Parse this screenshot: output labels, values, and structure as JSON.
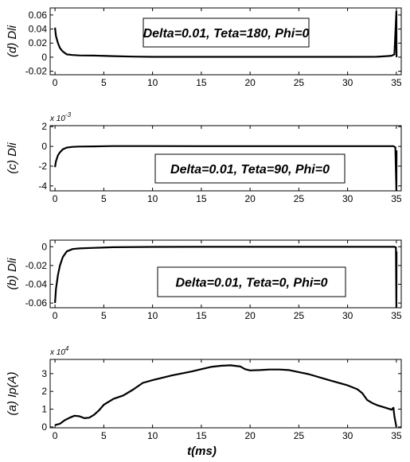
{
  "chart_data": [
    {
      "type": "line",
      "panel": "d",
      "ylabel": "(d) Dli",
      "xlabel": "",
      "annotation": "Delta=0.01, Teta=180, Phi=0",
      "xlim": [
        -0.5,
        35.5
      ],
      "ylim": [
        -0.025,
        0.07
      ],
      "xticks": [
        0,
        5,
        10,
        15,
        20,
        25,
        30,
        35
      ],
      "yticks": [
        -0.02,
        0,
        0.02,
        0.04,
        0.06
      ],
      "ytick_labels": [
        "-0.02",
        "0",
        "0.02",
        "0.04",
        "0.06"
      ],
      "exponent_label": "",
      "grid": false,
      "series": [
        {
          "x": [
            0,
            0.1,
            0.3,
            0.5,
            0.8,
            1.2,
            1.8,
            2.5,
            4,
            6,
            8,
            10,
            15,
            20,
            25,
            30,
            33,
            34,
            34.5,
            34.8,
            35,
            35.01,
            35.02
          ],
          "y": [
            0.042,
            0.03,
            0.02,
            0.013,
            0.008,
            0.004,
            0.003,
            0.0025,
            0.0023,
            0.0015,
            0.0008,
            0.0005,
            0.0004,
            0.0004,
            0.0004,
            0.0005,
            0.0006,
            0.0015,
            0.002,
            0.004,
            0.065,
            0.02,
            0.0
          ]
        }
      ]
    },
    {
      "type": "line",
      "panel": "c",
      "ylabel": "(c) Dli",
      "xlabel": "",
      "annotation": "Delta=0.01, Teta=90, Phi=0",
      "xlim": [
        -0.5,
        35.5
      ],
      "ylim": [
        -0.0045,
        0.0021
      ],
      "xticks": [
        0,
        5,
        10,
        15,
        20,
        25,
        30,
        35
      ],
      "yticks": [
        -0.004,
        -0.002,
        0,
        0.002
      ],
      "ytick_labels": [
        "-4",
        "-2",
        "0",
        "2"
      ],
      "exponent_label": "x 10",
      "exponent_power": "-3",
      "grid": false,
      "series": [
        {
          "x": [
            0,
            0.1,
            0.3,
            0.5,
            0.8,
            1.2,
            1.8,
            2.5,
            4,
            6,
            10,
            15,
            20,
            25,
            30,
            34.7,
            34.9,
            35,
            35.01,
            35.02
          ],
          "y": [
            -0.0021,
            -0.0015,
            -0.0009,
            -0.0006,
            -0.0003,
            -0.00012,
            -5e-05,
            -2e-05,
            0,
            3e-05,
            3e-05,
            2e-05,
            2e-05,
            2e-05,
            2e-05,
            2e-05,
            -0.0001,
            -0.0045,
            -0.002,
            -0.0004
          ]
        }
      ]
    },
    {
      "type": "line",
      "panel": "b",
      "ylabel": "(b) Dli",
      "xlabel": "",
      "annotation": "Delta=0.01, Teta=0, Phi=0",
      "xlim": [
        -0.5,
        35.5
      ],
      "ylim": [
        -0.065,
        0.007
      ],
      "xticks": [
        0,
        5,
        10,
        15,
        20,
        25,
        30,
        35
      ],
      "yticks": [
        -0.06,
        -0.04,
        -0.02,
        0
      ],
      "ytick_labels": [
        "-0.06",
        "-0.04",
        "-0.02",
        "0"
      ],
      "exponent_label": "",
      "grid": false,
      "series": [
        {
          "x": [
            0,
            0.1,
            0.3,
            0.5,
            0.8,
            1.2,
            1.8,
            2.5,
            4,
            6,
            10,
            15,
            20,
            25,
            30,
            34.8,
            34.95,
            35,
            35.01,
            35.02
          ],
          "y": [
            -0.06,
            -0.045,
            -0.03,
            -0.02,
            -0.011,
            -0.005,
            -0.0025,
            -0.0018,
            -0.0012,
            -0.0005,
            -0.0002,
            -0.0001,
            -0.0001,
            -0.0001,
            -0.0001,
            -0.0001,
            -0.0005,
            -0.065,
            -0.03,
            -0.005
          ]
        }
      ]
    },
    {
      "type": "line",
      "panel": "a",
      "ylabel": "(a) Ip(A)",
      "xlabel": "t(ms)",
      "annotation": "",
      "xlim": [
        -0.5,
        35.5
      ],
      "ylim": [
        -500,
        38000
      ],
      "xticks": [
        0,
        5,
        10,
        15,
        20,
        25,
        30,
        35
      ],
      "yticks": [
        0,
        10000,
        20000,
        30000
      ],
      "ytick_labels": [
        "0",
        "1",
        "2",
        "3"
      ],
      "exponent_label": "x 10",
      "exponent_power": "4",
      "grid": false,
      "series": [
        {
          "x": [
            0,
            0.5,
            1,
            1.5,
            2,
            2.5,
            3,
            3.5,
            4,
            4.5,
            5,
            6,
            7,
            8,
            9,
            10,
            12,
            14,
            16,
            17,
            18,
            19,
            19.5,
            20,
            21,
            22,
            23,
            24,
            26,
            28,
            30,
            31,
            31.5,
            32,
            32.5,
            33,
            34,
            34.5,
            34.7,
            34.8,
            35
          ],
          "y": [
            1000,
            1800,
            3800,
            5200,
            6300,
            6000,
            4900,
            5200,
            6800,
            9300,
            12500,
            15800,
            17700,
            21000,
            24800,
            26300,
            29000,
            31200,
            33800,
            34400,
            34700,
            34000,
            32500,
            31800,
            32000,
            32300,
            32300,
            32000,
            29700,
            26500,
            23400,
            21200,
            19000,
            15200,
            13500,
            12300,
            10600,
            9700,
            10800,
            6000,
            0
          ]
        }
      ]
    }
  ]
}
